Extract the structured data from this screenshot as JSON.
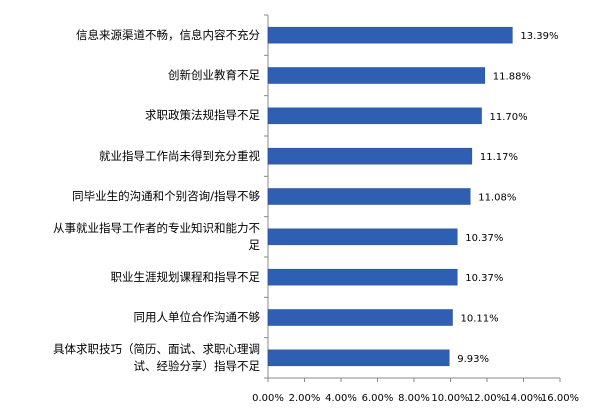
{
  "chart_data": {
    "type": "bar",
    "orientation": "horizontal",
    "categories": [
      "信息来源渠道不畅，信息内容不充分",
      "创新创业教育不足",
      "求职政策法规指导不足",
      "就业指导工作尚未得到充分重视",
      "同毕业生的沟通和个别咨询/指导不够",
      "从事就业指导工作者的专业知识和能力不足",
      "职业生涯规划课程和指导不足",
      "同用人单位合作沟通不够",
      "具体求职技巧（简历、面试、求职心理调试、经验分享）指导不足"
    ],
    "values": [
      13.39,
      11.88,
      11.7,
      11.17,
      11.08,
      10.37,
      10.37,
      10.11,
      9.93
    ],
    "value_labels": [
      "13.39%",
      "11.88%",
      "11.70%",
      "11.17%",
      "11.08%",
      "10.37%",
      "10.37%",
      "10.11%",
      "9.93%"
    ],
    "color": "#2f5fb3",
    "xlim": [
      0,
      16
    ],
    "xticks": [
      {
        "value": 0,
        "label": "0.00%"
      },
      {
        "value": 2,
        "label": "2.00%"
      },
      {
        "value": 4,
        "label": "4.00%"
      },
      {
        "value": 6,
        "label": "6.00%"
      },
      {
        "value": 8,
        "label": "8.00%"
      },
      {
        "value": 10,
        "label": "10.00%"
      },
      {
        "value": 12,
        "label": "12.00%"
      },
      {
        "value": 14,
        "label": "14.00%"
      },
      {
        "value": 16,
        "label": "16.00%"
      }
    ],
    "grid": false
  }
}
